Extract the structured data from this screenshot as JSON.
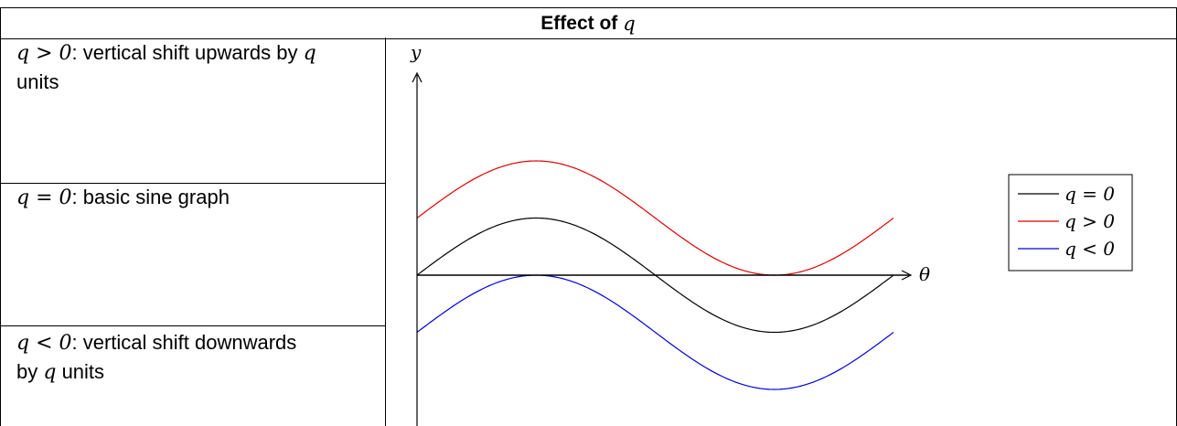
{
  "table": {
    "header_text": "Effect of",
    "header_var": "q",
    "rows": [
      {
        "var": "q",
        "op": " > 0",
        "text": ": vertical shift upwards by ",
        "tail_var": "q",
        "tail_text": " units"
      },
      {
        "var": "q",
        "op": " = 0",
        "text": ": basic sine graph",
        "tail_var": "",
        "tail_text": ""
      },
      {
        "var": "q",
        "op": " < 0",
        "text": ": vertical shift downwards by ",
        "tail_var": "q",
        "tail_text": " units"
      }
    ]
  },
  "graph": {
    "y_axis_label": "y",
    "x_axis_label": "θ",
    "colors": {
      "q_zero": "#000000",
      "q_pos": "#e00000",
      "q_neg": "#0000e0"
    }
  },
  "chart_data": {
    "type": "line",
    "x": [
      0,
      30,
      60,
      90,
      120,
      150,
      180,
      210,
      240,
      270,
      300,
      330,
      360
    ],
    "series": [
      {
        "name": "q = 0",
        "values": [
          0,
          0.5,
          0.866,
          1,
          0.866,
          0.5,
          0,
          -0.5,
          -0.866,
          -1,
          -0.866,
          -0.5,
          0
        ]
      },
      {
        "name": "q > 0",
        "values": [
          1,
          1.5,
          1.866,
          2,
          1.866,
          1.5,
          1,
          0.5,
          0.134,
          0,
          0.134,
          0.5,
          1
        ]
      },
      {
        "name": "q < 0",
        "values": [
          -1,
          -0.5,
          -0.134,
          0,
          -0.134,
          -0.5,
          -1,
          -1.5,
          -1.866,
          -2,
          -1.866,
          -1.5,
          -1
        ]
      }
    ],
    "legend": {
      "entries": [
        {
          "var": "q",
          "op": " = 0"
        },
        {
          "var": "q",
          "op": " > 0"
        },
        {
          "var": "q",
          "op": " < 0"
        }
      ],
      "placement": "right"
    },
    "grid": false
  }
}
